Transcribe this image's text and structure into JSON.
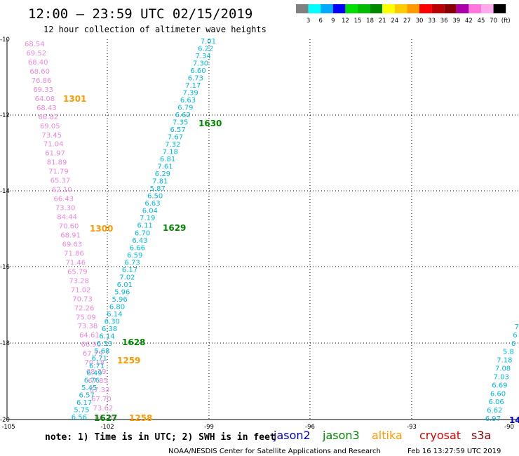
{
  "header": {
    "title": "12:00 — 23:59 UTC 02/15/2019",
    "subtitle": "12 hour collection of altimeter wave heights"
  },
  "colorbar": {
    "colors": [
      "#808080",
      "#00ffff",
      "#00aaff",
      "#0000ff",
      "#00dd00",
      "#00bb00",
      "#008800",
      "#ffff00",
      "#ffcc00",
      "#ff9900",
      "#ff0000",
      "#bb0000",
      "#880000",
      "#aa00aa",
      "#ff77dd",
      "#ffaaee",
      "#000000"
    ],
    "labels": [
      "3",
      "6",
      "9",
      "12",
      "15",
      "18",
      "21",
      "24",
      "27",
      "30",
      "33",
      "36",
      "39",
      "42",
      "45",
      "70",
      "(ft)"
    ]
  },
  "axes": {
    "lat_labels": [
      "-10",
      "-12",
      "-14",
      "-16",
      "-18",
      "-20"
    ],
    "lon_labels": [
      "-105",
      "-102",
      "-99",
      "-96",
      "-93",
      "-90"
    ]
  },
  "track_times": [
    {
      "label": "1301",
      "color": "#ff9900"
    },
    {
      "label": "1630",
      "color": "#008800"
    },
    {
      "label": "1300",
      "color": "#ff9900"
    },
    {
      "label": "1629",
      "color": "#008800"
    },
    {
      "label": "1628",
      "color": "#008800"
    },
    {
      "label": "1259",
      "color": "#ff9900"
    },
    {
      "label": "1627",
      "color": "#008800"
    },
    {
      "label": "1258",
      "color": "#ff9900"
    },
    {
      "label": "14",
      "color": "#0000cc"
    }
  ],
  "tracks": {
    "pink": {
      "color": "#ee88dd",
      "values": [
        "68.54",
        "69.52",
        "68.40",
        "68.60",
        "76.86",
        "69.33",
        "64.08",
        "68.43",
        "66.82",
        "69.05",
        "73.45",
        "71.04",
        "61.97",
        "81.89",
        "71.79",
        "65.37",
        "62.10",
        "66.43",
        "73.30",
        "84.44",
        "70.60",
        "68.91",
        "69.63",
        "71.86",
        "71.46",
        "65.79",
        "73.28",
        "71.02",
        "70.73",
        "72.26",
        "75.09",
        "73.38",
        "64.61",
        "66.90",
        "67.79",
        "70.18",
        "68.39",
        "67.85",
        "67.33",
        "67.70",
        "73.62",
        "68.76"
      ]
    },
    "cyan_left": {
      "color": "#00bbdd",
      "values": [
        "7.01",
        "6.22",
        "7.34",
        "7.30",
        "6.60",
        "6.73",
        "7.17",
        "7.39",
        "6.63",
        "6.79",
        "6.62",
        "7.35",
        "6.57",
        "7.67",
        "7.32",
        "7.18",
        "6.81",
        "7.61",
        "6.29",
        "7.81",
        "5.87",
        "6.50",
        "6.63",
        "6.04",
        "7.19",
        "6.11",
        "6.70",
        "6.43",
        "6.66",
        "6.59",
        "6.73",
        "6.17",
        "7.02",
        "6.01",
        "5.96",
        "5.96",
        "6.80",
        "6.14",
        "6.30",
        "6.38",
        "6.14",
        "6.53",
        "5.68",
        "6.71",
        "6.71",
        "6.49",
        "6.76",
        "5.45",
        "6.57",
        "6.17",
        "5.75",
        "6.56"
      ]
    },
    "cyan_right": {
      "color": "#00bbdd",
      "values": [
        "7",
        "6",
        "6",
        "5.8",
        "7.18",
        "7.08",
        "7.03",
        "6.69",
        "6.60",
        "6.06",
        "6.62",
        "6.97"
      ]
    }
  },
  "legend": {
    "note": "note: 1) Time is in UTC; 2) SWH is in feet",
    "missions": [
      {
        "name": "jason2",
        "color": "#0000cc"
      },
      {
        "name": "jason3",
        "color": "#008800"
      },
      {
        "name": "altika",
        "color": "#ff9900"
      },
      {
        "name": "cryosat",
        "color": "#dd0000"
      },
      {
        "name": "s3a",
        "color": "#880000"
      }
    ]
  },
  "footer": {
    "credit": "NOAA/NESDIS Center for Satellite Applications and Research",
    "timestamp": "Feb 16 13:27:59 UTC 2019"
  }
}
